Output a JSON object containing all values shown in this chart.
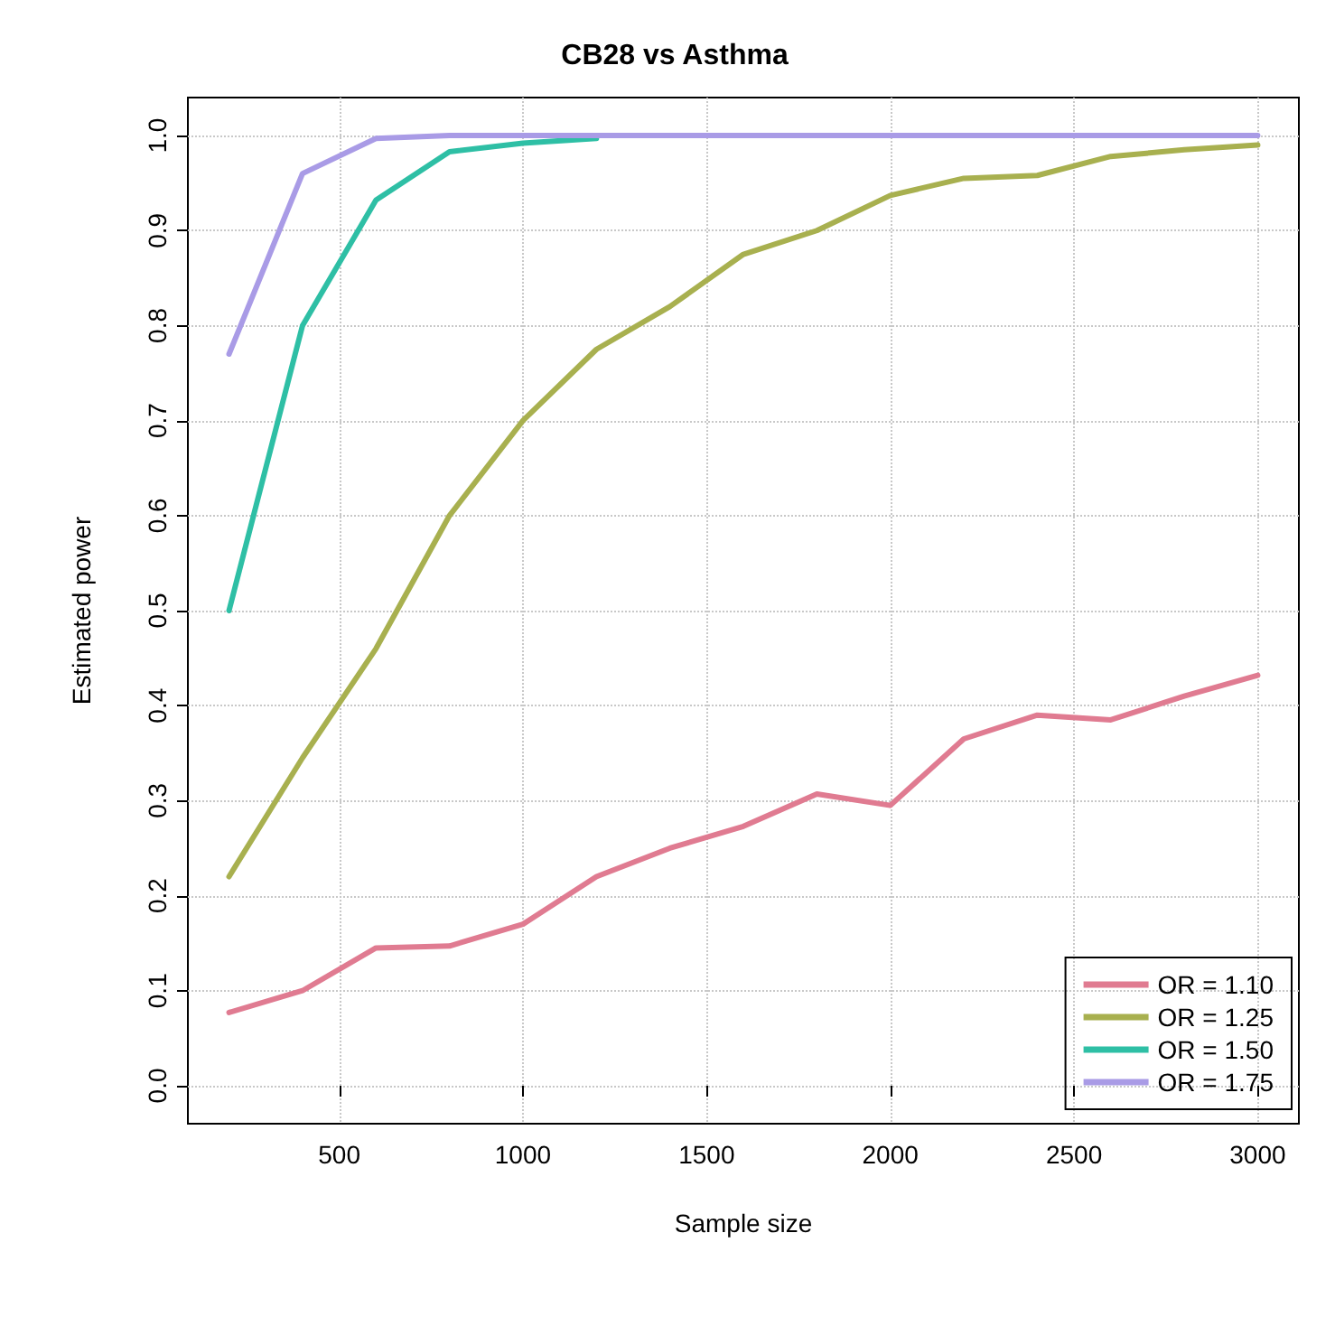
{
  "chart_data": {
    "type": "line",
    "title": "CB28 vs Asthma",
    "xlabel": "Sample size",
    "ylabel": "Estimated power",
    "x": [
      200,
      400,
      600,
      800,
      1000,
      1200,
      1400,
      1600,
      1800,
      2000,
      2200,
      2400,
      2600,
      2800,
      3000
    ],
    "series": [
      {
        "name": "OR = 1.10",
        "color": "#e07b91",
        "values": [
          0.077,
          0.1,
          0.145,
          0.147,
          0.17,
          0.22,
          0.25,
          0.273,
          0.307,
          0.295,
          0.365,
          0.39,
          0.385,
          0.41,
          0.432
        ]
      },
      {
        "name": "OR = 1.25",
        "color": "#a8b04f",
        "values": [
          0.22,
          0.345,
          0.46,
          0.6,
          0.7,
          0.775,
          0.82,
          0.875,
          0.9,
          0.937,
          0.955,
          0.958,
          0.978,
          0.985,
          0.99
        ]
      },
      {
        "name": "OR = 1.50",
        "color": "#2ebfa5",
        "values": [
          0.5,
          0.8,
          0.932,
          0.983,
          0.992,
          0.997,
          null,
          null,
          null,
          null,
          null,
          null,
          null,
          null,
          null
        ]
      },
      {
        "name": "OR = 1.75",
        "color": "#a99be6",
        "values": [
          0.77,
          0.96,
          0.997,
          1.0,
          1.0,
          1.0,
          1.0,
          1.0,
          1.0,
          1.0,
          1.0,
          1.0,
          1.0,
          1.0,
          1.0
        ]
      }
    ],
    "xlim": [
      88,
      3112
    ],
    "xticks": [
      500,
      1000,
      1500,
      2000,
      2500,
      3000
    ],
    "ylim": [
      -0.04,
      1.04
    ],
    "yticks": [
      {
        "value": 0,
        "label": "0.0"
      },
      {
        "value": 0.1,
        "label": "0.1"
      },
      {
        "value": 0.2,
        "label": "0.2"
      },
      {
        "value": 0.3,
        "label": "0.3"
      },
      {
        "value": 0.4,
        "label": "0.4"
      },
      {
        "value": 0.5,
        "label": "0.5"
      },
      {
        "value": 0.6,
        "label": "0.6"
      },
      {
        "value": 0.7,
        "label": "0.7"
      },
      {
        "value": 0.8,
        "label": "0.8"
      },
      {
        "value": 0.9,
        "label": "0.9"
      },
      {
        "value": 1,
        "label": "1.0"
      }
    ],
    "grid": true,
    "legend": "bottom right",
    "marker": "none",
    "line_style": "solid"
  }
}
